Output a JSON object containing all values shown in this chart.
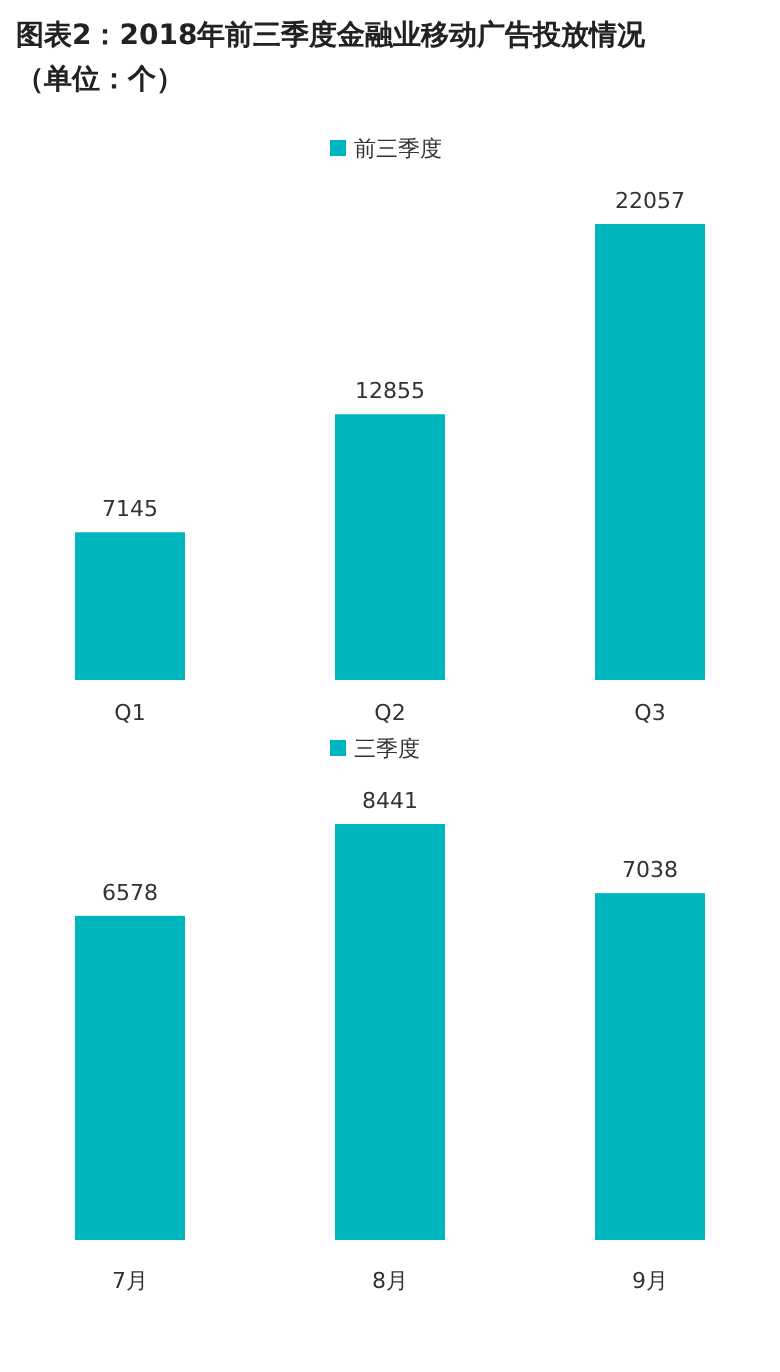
{
  "chart_data": [
    {
      "type": "bar",
      "title": "图表2：2018年前三季度金融业移动广告投放情况（单位：个）",
      "categories": [
        "Q1",
        "Q2",
        "Q3"
      ],
      "series": [
        {
          "name": "前三季度",
          "color": "#00b6bd",
          "values": [
            7145,
            12855,
            22057
          ]
        }
      ],
      "data_labels": true,
      "legend": "top"
    },
    {
      "type": "bar",
      "categories": [
        "7月",
        "8月",
        "9月"
      ],
      "series": [
        {
          "name": "三季度",
          "color": "#00b6bd",
          "values": [
            6578,
            8441,
            7038
          ]
        }
      ],
      "data_labels": true,
      "legend": "top"
    }
  ]
}
